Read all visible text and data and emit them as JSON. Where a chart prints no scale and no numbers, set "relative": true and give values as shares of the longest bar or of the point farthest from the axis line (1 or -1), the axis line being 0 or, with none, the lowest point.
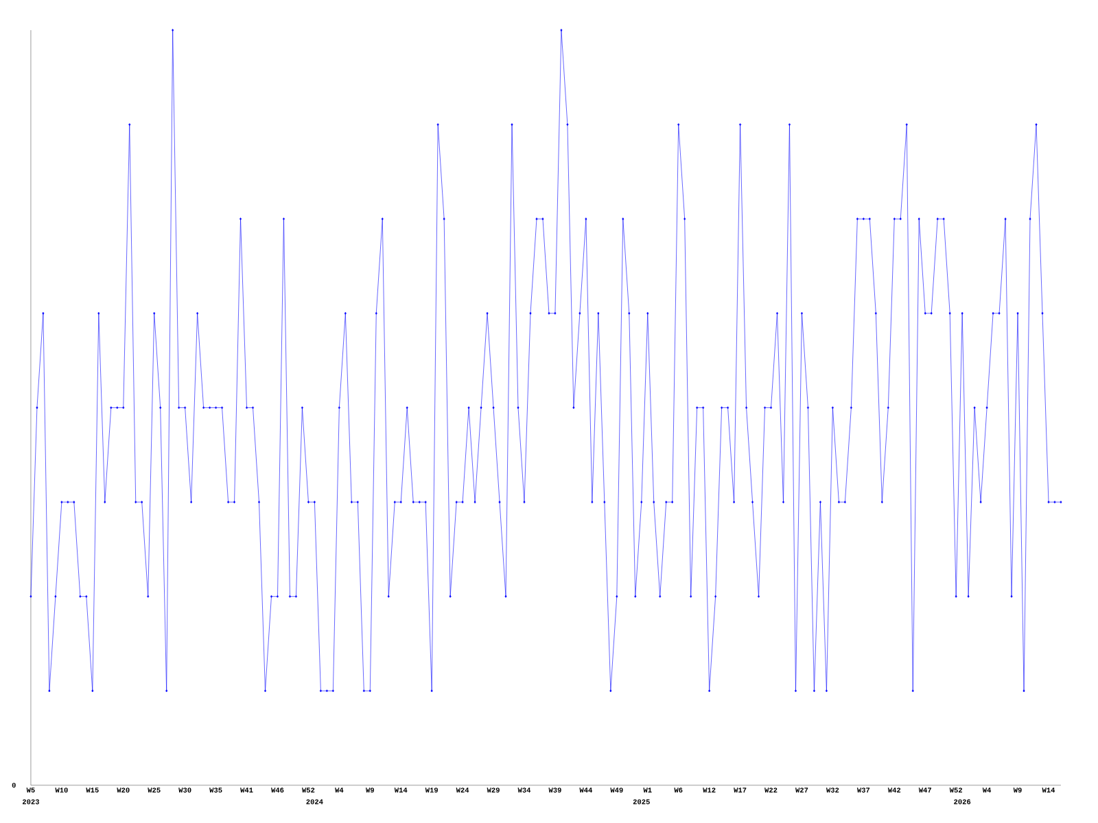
{
  "chart_data": {
    "type": "line",
    "relative": true,
    "color": "#0000ff",
    "marker": "diamond",
    "line_style": "solid",
    "categories": [
      "W5",
      null,
      null,
      null,
      null,
      "W10",
      null,
      null,
      null,
      null,
      "W15",
      null,
      null,
      null,
      null,
      "W20",
      null,
      null,
      null,
      null,
      "W25",
      null,
      null,
      null,
      null,
      "W30",
      null,
      null,
      null,
      null,
      "W35",
      null,
      null,
      null,
      null,
      "W41",
      null,
      null,
      null,
      null,
      "W46",
      null,
      null,
      null,
      null,
      "W52",
      "2024",
      null,
      null,
      null,
      "W4",
      null,
      null,
      null,
      null,
      "W9",
      null,
      null,
      null,
      null,
      "W14",
      null,
      null,
      null,
      null,
      "W19",
      null,
      null,
      null,
      null,
      "W24",
      null,
      null,
      null,
      null,
      "W29",
      null,
      null,
      null,
      null,
      "W34",
      null,
      null,
      null,
      null,
      "W39",
      null,
      null,
      null,
      null,
      "W44",
      null,
      null,
      null,
      null,
      "W49",
      null,
      null,
      null,
      "2025",
      "W1",
      null,
      null,
      null,
      null,
      "W6",
      null,
      null,
      null,
      null,
      "W12",
      null,
      null,
      null,
      null,
      "W17",
      null,
      null,
      null,
      null,
      "W22",
      null,
      null,
      null,
      null,
      "W27",
      null,
      null,
      null,
      null,
      "W32",
      null,
      null,
      null,
      null,
      "W37",
      null,
      null,
      null,
      null,
      "W42",
      null,
      null,
      null,
      null,
      "W47",
      null,
      null,
      null,
      null,
      "W52",
      "2026",
      null,
      null,
      null,
      "W4",
      null,
      null,
      null,
      null,
      "W9",
      null,
      null,
      null,
      null,
      "W14",
      null,
      null
    ],
    "values": [
      0.25,
      0.5,
      0.625,
      0.125,
      0.25,
      0.375,
      0.375,
      0.375,
      0.25,
      0.25,
      0.125,
      0.625,
      0.375,
      0.5,
      0.5,
      0.5,
      0.875,
      0.375,
      0.375,
      0.25,
      0.625,
      0.5,
      0.125,
      1,
      0.5,
      0.5,
      0.375,
      0.625,
      0.5,
      0.5,
      0.5,
      0.5,
      0.375,
      0.375,
      0.75,
      0.5,
      0.5,
      0.375,
      0.125,
      0.25,
      0.25,
      0.75,
      0.25,
      0.25,
      0.5,
      0.375,
      0.375,
      0.125,
      0.125,
      0.125,
      0.5,
      0.625,
      0.375,
      0.375,
      0.125,
      0.125,
      0.625,
      0.75,
      0.25,
      0.375,
      0.375,
      0.5,
      0.375,
      0.375,
      0.375,
      0.125,
      0.875,
      0.75,
      0.25,
      0.375,
      0.375,
      0.5,
      0.375,
      0.5,
      0.625,
      0.5,
      0.375,
      0.25,
      0.875,
      0.5,
      0.375,
      0.625,
      0.75,
      0.75,
      0.625,
      0.625,
      1,
      0.875,
      0.5,
      0.625,
      0.75,
      0.375,
      0.625,
      0.375,
      0.125,
      0.25,
      0.75,
      0.625,
      0.25,
      0.375,
      0.625,
      0.375,
      0.25,
      0.375,
      0.375,
      0.875,
      0.75,
      0.25,
      0.5,
      0.5,
      0.125,
      0.25,
      0.5,
      0.5,
      0.375,
      0.875,
      0.5,
      0.375,
      0.25,
      0.5,
      0.5,
      0.625,
      0.375,
      0.875,
      0.125,
      0.625,
      0.5,
      0.125,
      0.375,
      0.125,
      0.5,
      0.375,
      0.375,
      0.5,
      0.75,
      0.75,
      0.75,
      0.625,
      0.375,
      0.5,
      0.75,
      0.75,
      0.875,
      0.125,
      0.75,
      0.625,
      0.625,
      0.75,
      0.75,
      0.625,
      0.25,
      0.625,
      0.25,
      0.5,
      0.375,
      0.5,
      0.625,
      0.625,
      0.75,
      0.25,
      0.625,
      0.125,
      0.75,
      0.875,
      0.625,
      0.375,
      0.375,
      0.375
    ],
    "annotations": [
      "0",
      "2023"
    ]
  }
}
